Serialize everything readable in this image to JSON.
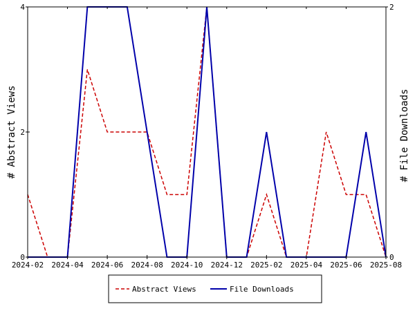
{
  "chart_data": {
    "type": "line",
    "x": [
      "2024-02",
      "2024-03",
      "2024-04",
      "2024-05",
      "2024-06",
      "2024-07",
      "2024-08",
      "2024-09",
      "2024-10",
      "2024-11",
      "2024-12",
      "2025-01",
      "2025-02",
      "2025-03",
      "2025-04",
      "2025-05",
      "2025-06",
      "2025-07",
      "2025-08"
    ],
    "xticks": [
      "2024-02",
      "2024-04",
      "2024-06",
      "2024-08",
      "2024-10",
      "2024-12",
      "2025-02",
      "2025-04",
      "2025-06",
      "2025-08"
    ],
    "series": [
      {
        "name": "Abstract Views",
        "axis": "left",
        "color": "#cc0000",
        "dash": "dashed",
        "values": [
          1,
          0,
          0,
          3,
          2,
          2,
          2,
          1,
          1,
          4,
          0,
          0,
          1,
          0,
          0,
          2,
          1,
          1,
          0
        ]
      },
      {
        "name": "File Downloads",
        "axis": "right",
        "color": "#0000aa",
        "dash": "solid",
        "values": [
          0,
          0,
          0,
          2,
          2,
          2,
          1,
          0,
          0,
          2,
          0,
          0,
          1,
          0,
          0,
          0,
          0,
          1,
          0
        ]
      }
    ],
    "ylabel_left": "# Abstract Views",
    "ylabel_right": "# File Downloads",
    "ylim_left": [
      0,
      4
    ],
    "ylim_right": [
      0,
      2
    ],
    "yticks_left": [
      0,
      2,
      4
    ],
    "yticks_right": [
      0,
      2
    ],
    "grid": false,
    "legend": "bottom"
  }
}
